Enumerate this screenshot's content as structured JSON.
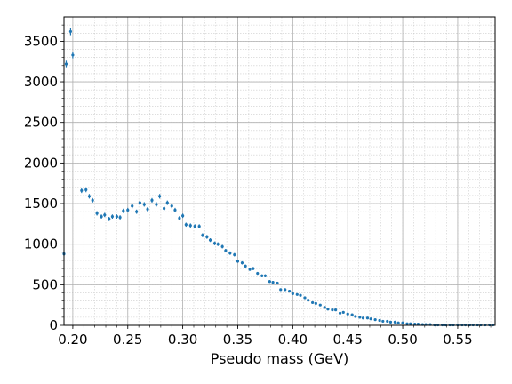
{
  "chart_data": {
    "type": "scatter",
    "title": "",
    "xlabel": "Pseudo mass (GeV)",
    "ylabel": "",
    "xlim": [
      0.192,
      0.584
    ],
    "ylim": [
      0,
      3800
    ],
    "xticks": [
      0.2,
      0.25,
      0.3,
      0.35,
      0.4,
      0.45,
      0.5,
      0.55
    ],
    "xtick_labels": [
      "0.20",
      "0.25",
      "0.30",
      "0.35",
      "0.40",
      "0.45",
      "0.50",
      "0.55"
    ],
    "yticks": [
      0,
      500,
      1000,
      1500,
      2000,
      2500,
      3000,
      3500
    ],
    "ytick_labels": [
      "0",
      "500",
      "1000",
      "1500",
      "2000",
      "2500",
      "3000",
      "3500"
    ],
    "grid": "major and minor",
    "marker_color": "#1f77b4",
    "series": [
      {
        "x": [
          0.192,
          0.194,
          0.198,
          0.2,
          0.208,
          0.212,
          0.215,
          0.218,
          0.222,
          0.226,
          0.229,
          0.233,
          0.236,
          0.24,
          0.243,
          0.246,
          0.25,
          0.254,
          0.258,
          0.261,
          0.265,
          0.268,
          0.272,
          0.276,
          0.279,
          0.283,
          0.286,
          0.29,
          0.293,
          0.297,
          0.3,
          0.303,
          0.307,
          0.311,
          0.315,
          0.318,
          0.322,
          0.325,
          0.329,
          0.332,
          0.336,
          0.339,
          0.343,
          0.347,
          0.35,
          0.354,
          0.357,
          0.361,
          0.364,
          0.368,
          0.372,
          0.375,
          0.379,
          0.382,
          0.386,
          0.389,
          0.393,
          0.397,
          0.4,
          0.404,
          0.407,
          0.411,
          0.414,
          0.418,
          0.421,
          0.425,
          0.429,
          0.432,
          0.436,
          0.439,
          0.443,
          0.446,
          0.45,
          0.454,
          0.457,
          0.461,
          0.464,
          0.468,
          0.471,
          0.475,
          0.479,
          0.482,
          0.486,
          0.489,
          0.493,
          0.496,
          0.5,
          0.504,
          0.507,
          0.511,
          0.514,
          0.518,
          0.521,
          0.525,
          0.529,
          0.532,
          0.536,
          0.539,
          0.543,
          0.546,
          0.55,
          0.554,
          0.557,
          0.561,
          0.564,
          0.568,
          0.571,
          0.575,
          0.579,
          0.582
        ],
        "y": [
          880,
          3220,
          3620,
          3330,
          1660,
          1670,
          1590,
          1540,
          1380,
          1340,
          1360,
          1310,
          1340,
          1340,
          1330,
          1410,
          1420,
          1470,
          1400,
          1510,
          1490,
          1430,
          1540,
          1490,
          1590,
          1440,
          1510,
          1470,
          1420,
          1320,
          1350,
          1240,
          1230,
          1220,
          1220,
          1110,
          1090,
          1050,
          1010,
          1000,
          970,
          920,
          890,
          870,
          790,
          770,
          730,
          690,
          700,
          640,
          610,
          610,
          540,
          530,
          520,
          440,
          440,
          420,
          390,
          380,
          370,
          340,
          310,
          280,
          270,
          250,
          220,
          200,
          190,
          190,
          150,
          160,
          140,
          130,
          110,
          100,
          90,
          90,
          80,
          70,
          60,
          50,
          50,
          40,
          40,
          30,
          30,
          20,
          20,
          15,
          15,
          10,
          10,
          10,
          5,
          5,
          5,
          5,
          5,
          5,
          5,
          5,
          5,
          5,
          5,
          5,
          5,
          5,
          5,
          5
        ],
        "yerr": [
          25,
          40,
          45,
          40,
          30,
          30,
          28,
          28,
          27,
          26,
          26,
          26,
          26,
          26,
          26,
          27,
          27,
          27,
          26,
          27,
          27,
          27,
          28,
          27,
          28,
          27,
          27,
          27,
          27,
          26,
          26,
          25,
          25,
          25,
          25,
          24,
          24,
          23,
          23,
          23,
          22,
          22,
          21,
          21,
          20,
          20,
          19,
          19,
          19,
          18,
          18,
          18,
          17,
          17,
          16,
          15,
          15,
          15,
          14,
          14,
          14,
          13,
          13,
          12,
          12,
          11,
          11,
          10,
          10,
          10,
          9,
          9,
          9,
          8,
          8,
          7,
          7,
          7,
          6,
          6,
          6,
          5,
          5,
          5,
          5,
          4,
          4,
          4,
          4,
          3,
          3,
          3,
          3,
          3,
          2,
          2,
          2,
          2,
          2,
          2,
          2,
          2,
          2,
          2,
          2,
          2,
          2,
          2,
          2,
          2
        ]
      }
    ]
  }
}
